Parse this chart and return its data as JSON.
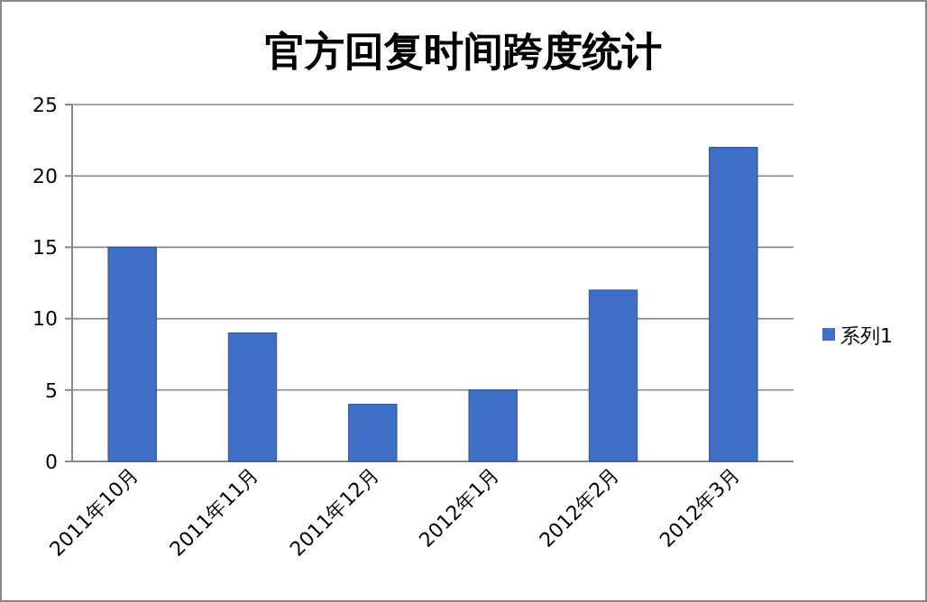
{
  "chart_data": {
    "type": "bar",
    "title": "官方回复时间跨度统计",
    "categories": [
      "2011年10月",
      "2011年11月",
      "2011年12月",
      "2012年1月",
      "2012年2月",
      "2012年3月"
    ],
    "series": [
      {
        "name": "系列1",
        "color": "#3f6fc6",
        "values": [
          15,
          9,
          4,
          5,
          12,
          22
        ]
      }
    ],
    "ylim": [
      0,
      25
    ],
    "yticks": [
      0,
      5,
      10,
      15,
      20,
      25
    ],
    "grid": "y",
    "legend": "right"
  }
}
